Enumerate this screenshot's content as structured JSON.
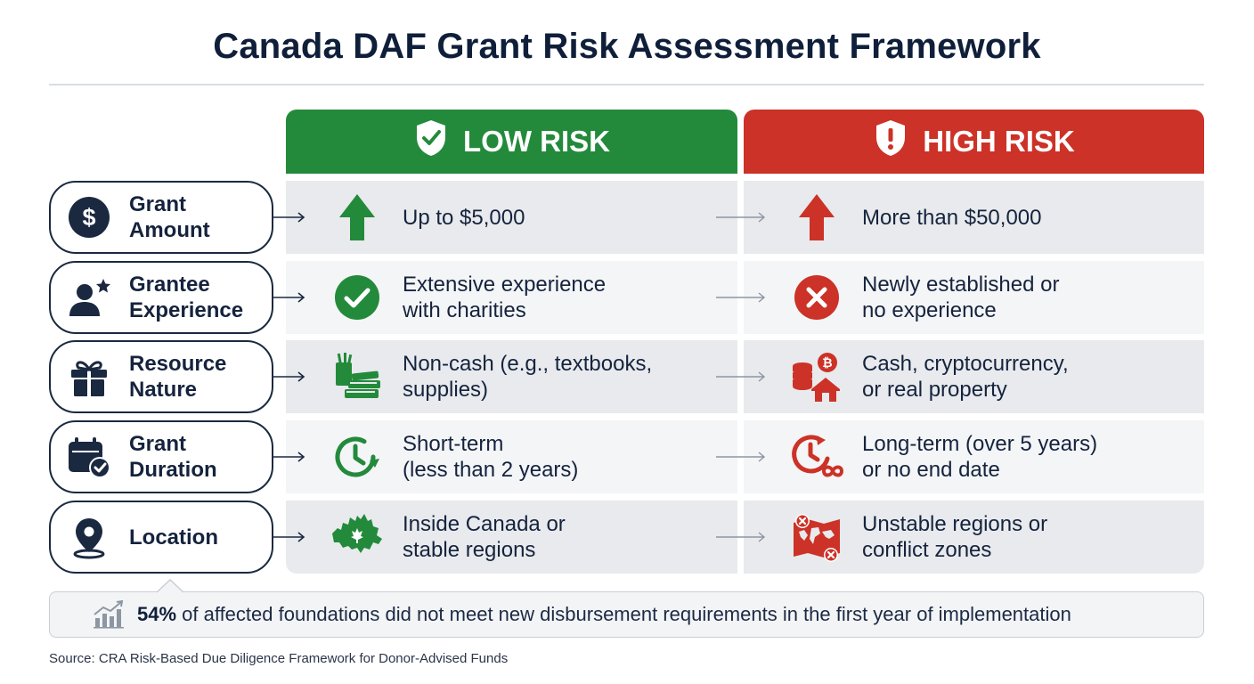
{
  "title": "Canada DAF Grant Risk Assessment Framework",
  "columns": {
    "low": {
      "label": "LOW RISK",
      "color": "#238a3b",
      "icon": "shield-check-icon"
    },
    "high": {
      "label": "HIGH RISK",
      "color": "#cc3227",
      "icon": "shield-exclamation-icon"
    }
  },
  "rows": [
    {
      "label_line1": "Grant",
      "label_line2": "Amount",
      "icon": "dollar-icon",
      "low": {
        "line1": "Up to $5,000",
        "line2": "",
        "icon": "arrow-up-icon"
      },
      "high": {
        "line1": "More than $50,000",
        "line2": "",
        "icon": "arrow-up-icon"
      }
    },
    {
      "label_line1": "Grantee",
      "label_line2": "Experience",
      "icon": "person-star-icon",
      "low": {
        "line1": "Extensive experience",
        "line2": "with charities",
        "icon": "check-circle-icon"
      },
      "high": {
        "line1": "Newly established or",
        "line2": "no experience",
        "icon": "x-circle-icon"
      }
    },
    {
      "label_line1": "Resource",
      "label_line2": "Nature",
      "icon": "gift-icon",
      "low": {
        "line1": "Non-cash (e.g., textbooks,",
        "line2": "supplies)",
        "icon": "books-supplies-icon"
      },
      "high": {
        "line1": "Cash, cryptocurrency,",
        "line2": "or real property",
        "icon": "coins-house-icon"
      }
    },
    {
      "label_line1": "Grant",
      "label_line2": "Duration",
      "icon": "calendar-check-icon",
      "low": {
        "line1": "Short-term",
        "line2": "(less than 2 years)",
        "icon": "clock-arrow-icon"
      },
      "high": {
        "line1": "Long-term (over 5 years)",
        "line2": "or no end date",
        "icon": "clock-infinity-icon"
      }
    },
    {
      "label_line1": "Location",
      "label_line2": "",
      "icon": "location-pin-icon",
      "low": {
        "line1": "Inside Canada or",
        "line2": "stable regions",
        "icon": "canada-map-icon"
      },
      "high": {
        "line1": "Unstable regions or",
        "line2": "conflict zones",
        "icon": "world-map-x-icon"
      }
    }
  ],
  "callout": {
    "highlight": "54%",
    "text": " of affected foundations did not meet new disbursement requirements in the first year of implementation",
    "icon": "bar-chart-trend-icon"
  },
  "source": "Source: CRA Risk-Based Due Diligence Framework for Donor-Advised Funds"
}
